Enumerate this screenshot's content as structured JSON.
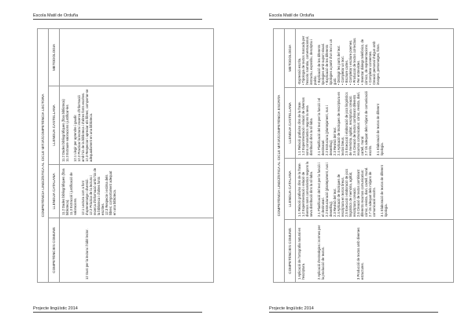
{
  "pages": [
    {
      "header": "Escola Matil de Orduña",
      "footer": "Projecte lingüístic 2014",
      "table": {
        "title": "COMPETÈNCIA LINGÜÍSTICA AL CICLE MITJÀ/COMPETÈNCIA LECTORA",
        "columns": [
          "COMPETÈNCIES COMUNS",
          "LLENGUA CATALANA",
          "LLENGUA CASTELLANA",
          "METODOLOGIA"
        ],
        "cells": [
          "\n\n\n\n\n\n12 Gust per la lectura i hàbit lector.",
          "11.2 Dades bibliogràfiques (fitxa biblioteca).\n11.3 Extracció i justificació de valoracions.\n\n12.1 Lectura com a font d'aprenentatge i diversió.\n12.2 Pràctica de la lectura i recerca d'informació amb l'ús de la biblioteca i d'altres fonts escrites.\n12.3 Respecte i estima dels llibres; comportament adequat en una biblioteca.",
          "11.2 Dades bibliogràfiques (fitxa biblioteca)\n11.3 Extraure valoracions i justificar-les\n\n12.1 Llegir per aprendre i gaudir.\n12.2 Practicar la lectura i recerca d'informació amb l'ús de la biblioteca i d'altres fonts escrites.\n12.3 Respectar i apreciar els llibres; comportar-se adequadament en una biblioteca.",
          ""
        ]
      }
    },
    {
      "header": "Escola Matil de Orduña",
      "footer": "Projecte lingüístic 2014",
      "table": {
        "title": "COMPETÈNCIA LINGÜÍSTICA AL CICLE MITJÀ/COMPETÈNCIA ESCRITA",
        "columns": [
          "COMPETÈNCIES COMUNS",
          "LLENGUA CATALANA",
          "LLENGUA CASTELLANA",
          "METODOLOGIA"
        ],
        "cells": [
          "1 Aplicació de l'ortografia natural en l'escriptura.\n\n\n\n2 Aplicació d'estratègies i normes per la producció de textos.\n\n\n\n\n\n\n\n\n3 Producció de textos amb diverses estructures.",
          "1.1 Relació grafia/so dins de la frase.\n1.2 Experimentació i relació de diversos sons consonàntics segons la seva distribució dins la síl·laba.\n\n2.1 Planificació del text per la funció i el destinatari.\n2.2 Estructuració (plantejament, nus i desenllaç).\n2.3 Revisió del text.\n2.4 Aplicació de tècniques de rescriptura en textos breus.\n2.5 Execució i elaboració de jocs lingüístics de memòria, agilitat, rescriptura i creació.\n2.6 Creació de textos combinant diferents recursos comunicatius: còmic, revista, diari, cartell, mural.\n2.7 Ús adequat dels mitjans de comunicació escrits.\n\n3.1 Elaboració de textos de diferent tipologia.",
          "1.1 Relació grafia/so dins de la frase.\n1.2 Experimentació i relació de diversos sons consonàntics segons la seva distribució dins la síl·laba.\n\n2.1 Planificació del text per la funció i el destinatari.\n2.2 Estructura (plantejament, nus i desenllaç).\n2.3 Revisió del text.\n2.4 Aplicació de tècniques de rescriptura en textos breus.\n2.5 Execució i elaboració de jocs lingüístics de memòria, agilitat, rescriptura i creació.\n2.6 Creació de textos combinant diferents recursos comunicatius: còmic, revista, diari, cartell, mural.\n2.7 Ús adequat dels mitjans de comunicació escrits.\n\n3.1 Elaboració de textos de diferent tipologia.",
          "-Expressió escrita.\n• Tipologia de textos marcada per l'escola: narratiu, conversacional, instructiu, expositiu, descriptiu i poètic.\n• Explicació de les diferents tipologies amb suport visual.\n• Explicació de les diferents tipologies a partir d'un text o un guió.\n• Distingir les parts del text.\n• Completar un text.\n• Escriure cartes.\n• Completar i escriure poemes.\n• Producció de textos col·lectius.\n• Fer entrevistes.\n• Inventar diàlegs telefònics, de còmics, de representacions.\n• Completar converses.\nCreació personal d'algun amb imatges, personatges, fotos."
        ]
      }
    }
  ]
}
